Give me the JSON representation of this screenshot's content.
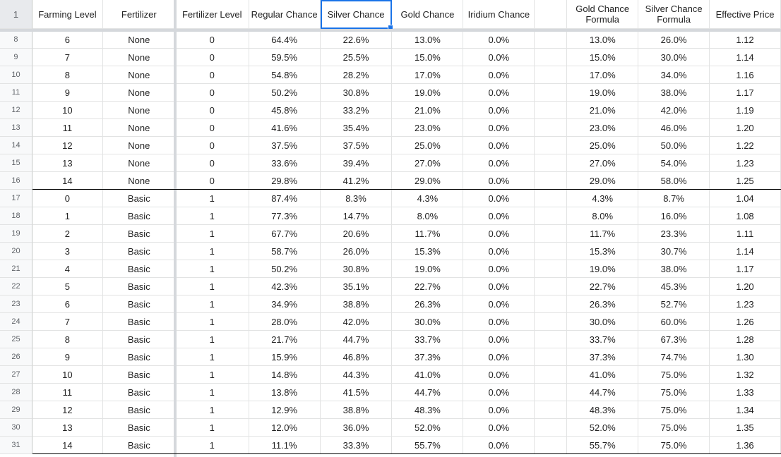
{
  "columns": [
    {
      "key": "A",
      "header": "Farming Level"
    },
    {
      "key": "B",
      "header": "Fertilizer"
    },
    {
      "key": "C",
      "header": "Fertilizer Level"
    },
    {
      "key": "D",
      "header": "Regular Chance"
    },
    {
      "key": "E",
      "header": "Silver Chance"
    },
    {
      "key": "F",
      "header": "Gold Chance"
    },
    {
      "key": "G",
      "header": "Iridium Chance"
    },
    {
      "key": "H",
      "header": ""
    },
    {
      "key": "I",
      "header": "Gold Chance Formula"
    },
    {
      "key": "J",
      "header": "Silver Chance Formula"
    },
    {
      "key": "K",
      "header": "Effective Price"
    }
  ],
  "header_row_number": "1",
  "selected_header": "Silver Chance",
  "rows": [
    {
      "num": "8",
      "cells": [
        "6",
        "None",
        "0",
        "64.4%",
        "22.6%",
        "13.0%",
        "0.0%",
        "",
        "13.0%",
        "26.0%",
        "1.12"
      ]
    },
    {
      "num": "9",
      "cells": [
        "7",
        "None",
        "0",
        "59.5%",
        "25.5%",
        "15.0%",
        "0.0%",
        "",
        "15.0%",
        "30.0%",
        "1.14"
      ]
    },
    {
      "num": "10",
      "cells": [
        "8",
        "None",
        "0",
        "54.8%",
        "28.2%",
        "17.0%",
        "0.0%",
        "",
        "17.0%",
        "34.0%",
        "1.16"
      ]
    },
    {
      "num": "11",
      "cells": [
        "9",
        "None",
        "0",
        "50.2%",
        "30.8%",
        "19.0%",
        "0.0%",
        "",
        "19.0%",
        "38.0%",
        "1.17"
      ]
    },
    {
      "num": "12",
      "cells": [
        "10",
        "None",
        "0",
        "45.8%",
        "33.2%",
        "21.0%",
        "0.0%",
        "",
        "21.0%",
        "42.0%",
        "1.19"
      ]
    },
    {
      "num": "13",
      "cells": [
        "11",
        "None",
        "0",
        "41.6%",
        "35.4%",
        "23.0%",
        "0.0%",
        "",
        "23.0%",
        "46.0%",
        "1.20"
      ]
    },
    {
      "num": "14",
      "cells": [
        "12",
        "None",
        "0",
        "37.5%",
        "37.5%",
        "25.0%",
        "0.0%",
        "",
        "25.0%",
        "50.0%",
        "1.22"
      ]
    },
    {
      "num": "15",
      "cells": [
        "13",
        "None",
        "0",
        "33.6%",
        "39.4%",
        "27.0%",
        "0.0%",
        "",
        "27.0%",
        "54.0%",
        "1.23"
      ]
    },
    {
      "num": "16",
      "cells": [
        "14",
        "None",
        "0",
        "29.8%",
        "41.2%",
        "29.0%",
        "0.0%",
        "",
        "29.0%",
        "58.0%",
        "1.25"
      ]
    },
    {
      "num": "17",
      "cells": [
        "0",
        "Basic",
        "1",
        "87.4%",
        "8.3%",
        "4.3%",
        "0.0%",
        "",
        "4.3%",
        "8.7%",
        "1.04"
      ]
    },
    {
      "num": "18",
      "cells": [
        "1",
        "Basic",
        "1",
        "77.3%",
        "14.7%",
        "8.0%",
        "0.0%",
        "",
        "8.0%",
        "16.0%",
        "1.08"
      ]
    },
    {
      "num": "19",
      "cells": [
        "2",
        "Basic",
        "1",
        "67.7%",
        "20.6%",
        "11.7%",
        "0.0%",
        "",
        "11.7%",
        "23.3%",
        "1.11"
      ]
    },
    {
      "num": "20",
      "cells": [
        "3",
        "Basic",
        "1",
        "58.7%",
        "26.0%",
        "15.3%",
        "0.0%",
        "",
        "15.3%",
        "30.7%",
        "1.14"
      ]
    },
    {
      "num": "21",
      "cells": [
        "4",
        "Basic",
        "1",
        "50.2%",
        "30.8%",
        "19.0%",
        "0.0%",
        "",
        "19.0%",
        "38.0%",
        "1.17"
      ]
    },
    {
      "num": "22",
      "cells": [
        "5",
        "Basic",
        "1",
        "42.3%",
        "35.1%",
        "22.7%",
        "0.0%",
        "",
        "22.7%",
        "45.3%",
        "1.20"
      ]
    },
    {
      "num": "23",
      "cells": [
        "6",
        "Basic",
        "1",
        "34.9%",
        "38.8%",
        "26.3%",
        "0.0%",
        "",
        "26.3%",
        "52.7%",
        "1.23"
      ]
    },
    {
      "num": "24",
      "cells": [
        "7",
        "Basic",
        "1",
        "28.0%",
        "42.0%",
        "30.0%",
        "0.0%",
        "",
        "30.0%",
        "60.0%",
        "1.26"
      ]
    },
    {
      "num": "25",
      "cells": [
        "8",
        "Basic",
        "1",
        "21.7%",
        "44.7%",
        "33.7%",
        "0.0%",
        "",
        "33.7%",
        "67.3%",
        "1.28"
      ]
    },
    {
      "num": "26",
      "cells": [
        "9",
        "Basic",
        "1",
        "15.9%",
        "46.8%",
        "37.3%",
        "0.0%",
        "",
        "37.3%",
        "74.7%",
        "1.30"
      ]
    },
    {
      "num": "27",
      "cells": [
        "10",
        "Basic",
        "1",
        "14.8%",
        "44.3%",
        "41.0%",
        "0.0%",
        "",
        "41.0%",
        "75.0%",
        "1.32"
      ]
    },
    {
      "num": "28",
      "cells": [
        "11",
        "Basic",
        "1",
        "13.8%",
        "41.5%",
        "44.7%",
        "0.0%",
        "",
        "44.7%",
        "75.0%",
        "1.33"
      ]
    },
    {
      "num": "29",
      "cells": [
        "12",
        "Basic",
        "1",
        "12.9%",
        "38.8%",
        "48.3%",
        "0.0%",
        "",
        "48.3%",
        "75.0%",
        "1.34"
      ]
    },
    {
      "num": "30",
      "cells": [
        "13",
        "Basic",
        "1",
        "12.0%",
        "36.0%",
        "52.0%",
        "0.0%",
        "",
        "52.0%",
        "75.0%",
        "1.35"
      ]
    },
    {
      "num": "31",
      "cells": [
        "14",
        "Basic",
        "1",
        "11.1%",
        "33.3%",
        "55.7%",
        "0.0%",
        "",
        "55.7%",
        "75.0%",
        "1.36"
      ]
    }
  ],
  "colors": {
    "selection": "#1a73e8",
    "gridline": "#e2e3e3",
    "freeze_bar": "#d5d8dc",
    "group_border": "#000000"
  }
}
